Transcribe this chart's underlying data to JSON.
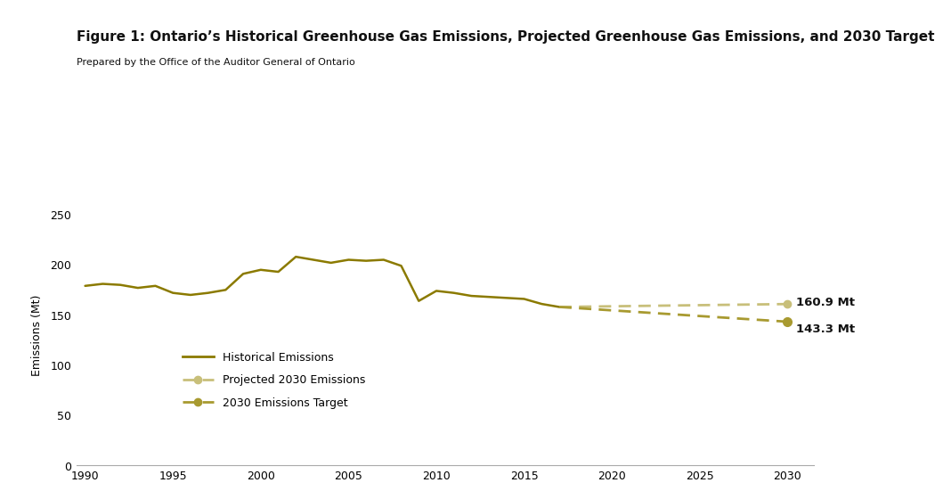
{
  "title": "Figure 1: Ontario’s Historical Greenhouse Gas Emissions, Projected Greenhouse Gas Emissions, and 2030 Target",
  "subtitle": "Prepared by the Office of the Auditor General of Ontario",
  "ylabel": "Emissions (Mt)",
  "top_bar_color": "#b5a030",
  "background_color": "#ffffff",
  "historical_color": "#8B7A00",
  "projected_color": "#C8BF7A",
  "target_color": "#A89A30",
  "historical_years": [
    1990,
    1991,
    1992,
    1993,
    1994,
    1995,
    1996,
    1997,
    1998,
    1999,
    2000,
    2001,
    2002,
    2003,
    2004,
    2005,
    2006,
    2007,
    2008,
    2009,
    2010,
    2011,
    2012,
    2013,
    2014,
    2015,
    2016,
    2017
  ],
  "historical_values": [
    179,
    181,
    180,
    177,
    179,
    172,
    170,
    172,
    175,
    191,
    195,
    193,
    208,
    205,
    202,
    205,
    204,
    205,
    199,
    164,
    174,
    172,
    169,
    168,
    167,
    166,
    161,
    158
  ],
  "projected_years": [
    2017,
    2030
  ],
  "projected_values": [
    158,
    160.9
  ],
  "target_years": [
    2017,
    2030
  ],
  "target_values": [
    158,
    143.3
  ],
  "xlim": [
    1989.5,
    2031.5
  ],
  "ylim": [
    0,
    260
  ],
  "yticks": [
    0,
    50,
    100,
    150,
    200,
    250
  ],
  "xticks": [
    1990,
    1995,
    2000,
    2005,
    2010,
    2015,
    2020,
    2025,
    2030
  ],
  "label_projected": "160.9 Mt",
  "label_target": "143.3 Mt",
  "legend_historical": "Historical Emissions",
  "legend_projected": "Projected 2030 Emissions",
  "legend_target": "2030 Emissions Target"
}
